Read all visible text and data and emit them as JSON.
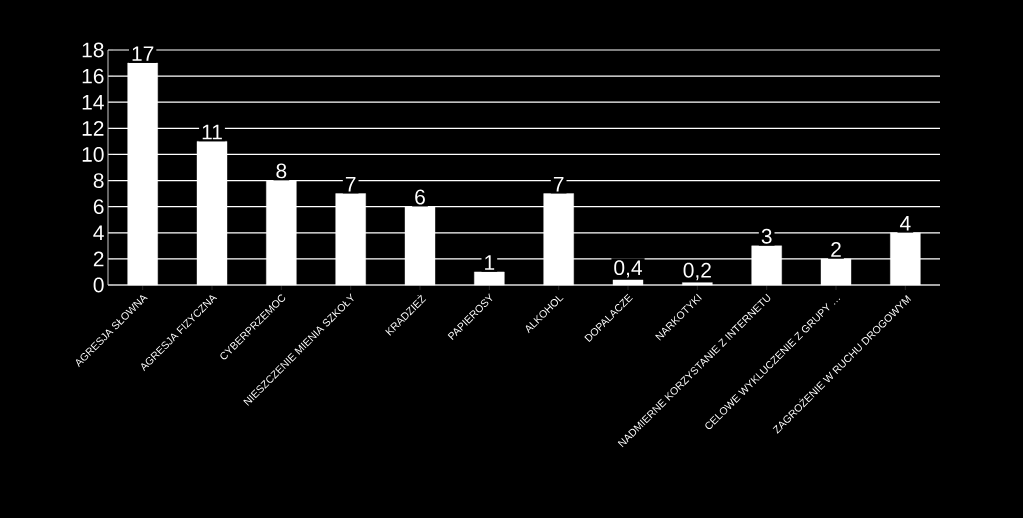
{
  "chart_data": {
    "type": "bar",
    "categories": [
      "AGRESJA SŁOWNA",
      "AGRESJA FIZYCZNA",
      "CYBERPRZEMOC",
      "NIESZCZENIE MIENIA SZKOŁY",
      "KRADZIEŻ",
      "PAPIEROSY",
      "ALKOHOL",
      "DOPALACZE",
      "NARKOTYKI",
      "NADMIERNE KORZYSTANIE Z INTERNETU",
      "CELOWE WYKLUCZENIE Z GRUPY …",
      "ZAGROŻENIE W RUCHU DROGOWYM"
    ],
    "values": [
      17,
      11,
      8,
      7,
      6,
      1,
      7,
      0.4,
      0.2,
      3,
      2,
      4
    ],
    "value_labels": [
      "17",
      "11",
      "8",
      "7",
      "6",
      "1",
      "7",
      "0,4",
      "0,2",
      "3",
      "2",
      "4"
    ],
    "color": "#ffffff",
    "ylim": [
      0,
      18
    ],
    "yticks": [
      0,
      2,
      4,
      6,
      8,
      10,
      12,
      14,
      16,
      18
    ],
    "grid": "y"
  }
}
